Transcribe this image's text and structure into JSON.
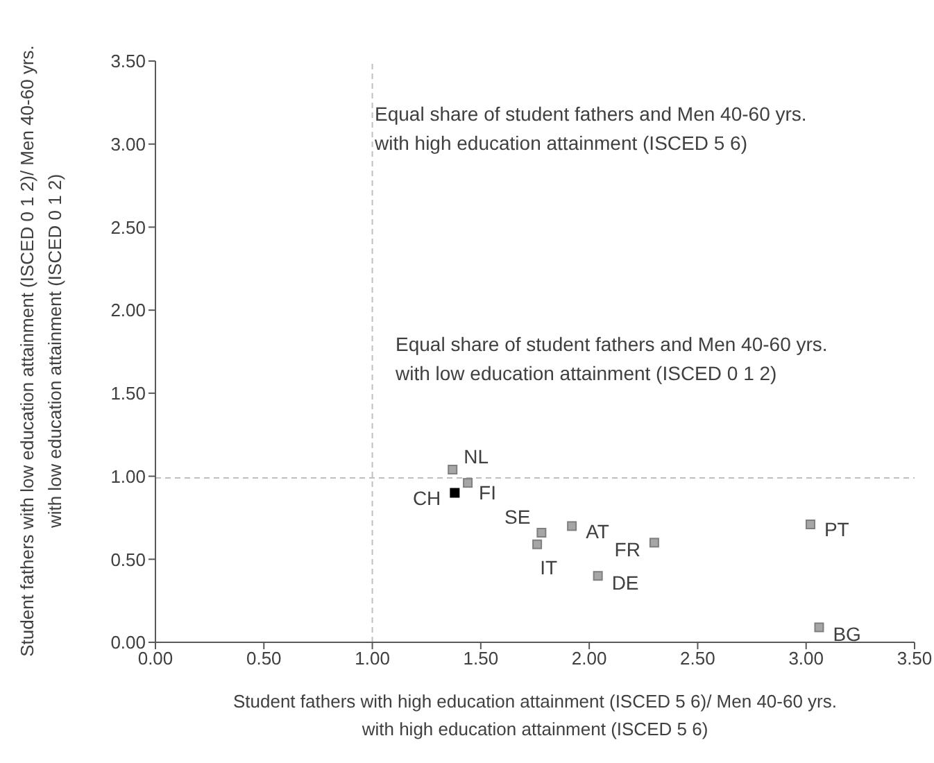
{
  "chart_data": {
    "type": "scatter",
    "xlabel": "Student fathers with high education attainment (ISCED 5 6)/ Men 40-60 yrs. with high education attainment (ISCED 5 6)",
    "ylabel": "Student fathers with low education attainment (ISCED 0 1 2)/ Men 40-60 yrs. with low education attainment (ISCED 0 1 2)",
    "x": [
      1.37,
      1.44,
      1.38,
      1.78,
      1.76,
      1.92,
      2.3,
      2.04,
      3.02,
      3.06
    ],
    "values": [
      1.04,
      0.96,
      0.9,
      0.66,
      0.59,
      0.7,
      0.6,
      0.4,
      0.71,
      0.09
    ],
    "colors": [
      "#a6a6a6",
      "#a6a6a6",
      "#000000",
      "#a6a6a6",
      "#a6a6a6",
      "#a6a6a6",
      "#a6a6a6",
      "#a6a6a6",
      "#a6a6a6",
      "#a6a6a6"
    ],
    "marker": "square",
    "grid": false,
    "legend": false,
    "xlim": [
      0,
      3.5
    ],
    "ylim": [
      0,
      3.5
    ],
    "xticks": [
      {
        "value": 0,
        "label": "0.00"
      },
      {
        "value": 0.5,
        "label": "0.50"
      },
      {
        "value": 1,
        "label": "1.00"
      },
      {
        "value": 1.5,
        "label": "1.50"
      },
      {
        "value": 2,
        "label": "2.00"
      },
      {
        "value": 2.5,
        "label": "2.50"
      },
      {
        "value": 3,
        "label": "3.00"
      },
      {
        "value": 3.5,
        "label": "3.50"
      }
    ],
    "yticks": [
      {
        "value": 0,
        "label": "0.00"
      },
      {
        "value": 0.5,
        "label": "0.50"
      },
      {
        "value": 1,
        "label": "1.00"
      },
      {
        "value": 1.5,
        "label": "1.50"
      },
      {
        "value": 2,
        "label": "2.00"
      },
      {
        "value": 2.5,
        "label": "2.50"
      },
      {
        "value": 3,
        "label": "3.00"
      },
      {
        "value": 3.5,
        "label": "3.50"
      }
    ],
    "ref_lines": [
      {
        "axis": "x",
        "value": 1,
        "color": "#bfbfbf",
        "line_style": "dashed"
      },
      {
        "axis": "y",
        "value": 0.99,
        "color": "#bfbfbf",
        "line_style": "dashed"
      }
    ],
    "annotations": [
      "Equal share of student fathers and Men 40-60 yrs. with high education attainment (ISCED 5 6)",
      "Equal share of student fathers and Men 40-60 yrs. with low education attainment (ISCED 0 1 2)",
      {
        "text": "NL",
        "x": 1.37,
        "y": 1.04
      },
      {
        "text": "FI",
        "x": 1.44,
        "y": 0.96
      },
      {
        "text": "CH",
        "x": 1.38,
        "y": 0.9
      },
      {
        "text": "SE",
        "x": 1.78,
        "y": 0.66
      },
      {
        "text": "IT",
        "x": 1.76,
        "y": 0.59
      },
      {
        "text": "AT",
        "x": 1.92,
        "y": 0.7
      },
      {
        "text": "FR",
        "x": 2.3,
        "y": 0.6
      },
      {
        "text": "DE",
        "x": 2.04,
        "y": 0.4
      },
      {
        "text": "PT",
        "x": 3.02,
        "y": 0.71
      },
      {
        "text": "BG",
        "x": 3.06,
        "y": 0.09
      }
    ]
  }
}
